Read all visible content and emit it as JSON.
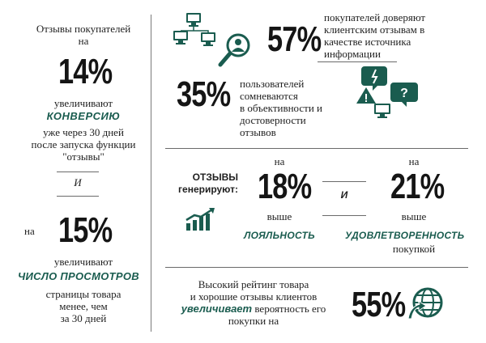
{
  "left": {
    "title_line1": "Отзывы покупателей",
    "title_line2": "на",
    "pct1": "14%",
    "increase1": "увеличивают",
    "conversion": "КОНВЕРСИЮ",
    "after1": "уже через 30 дней",
    "after2": "после запуска функции",
    "after3": "\"отзывы\"",
    "and": "И",
    "na": "на",
    "pct2": "15%",
    "increase2": "увеличивают",
    "views": "ЧИСЛО ПРОСМОТРОВ",
    "pages1": "страницы товара",
    "pages2": "менее, чем",
    "pages3": "за 30 дней"
  },
  "trust": {
    "pct": "57%",
    "line1": "покупателей доверяют",
    "line2": "клиентским отзывам в",
    "line3": "качестве источника",
    "line4": "информации"
  },
  "doubt": {
    "pct": "35%",
    "line1": "пользователей",
    "line2": "сомневаются",
    "line3": "в объективности и",
    "line4": "достоверности",
    "line5": "отзывов"
  },
  "generate": {
    "label1": "ОТЗЫВЫ",
    "label2": "генерируют:",
    "na1": "на",
    "pct1": "18%",
    "higher1": "выше",
    "loyalty": "ЛОЯЛЬНОСТЬ",
    "and": "И",
    "na2": "на",
    "pct2": "21%",
    "higher2": "выше",
    "satisfaction": "УДОВЛЕТВОРЕННОСТЬ",
    "purchase": "покупкой"
  },
  "rating": {
    "line1": "Высокий рейтинг товара",
    "line2": "и хорошие отзывы клиентов",
    "emph": "увеличивает",
    "line3_rest": "вероятность его",
    "line4": "покупки на",
    "pct": "55%"
  },
  "colors": {
    "accent": "#1a5c4f",
    "text": "#1f1f1f"
  },
  "icons": [
    "computers-network-icon",
    "magnifier-person-icon",
    "warning-question-bubbles-icon",
    "growth-chart-icon",
    "globe-arrow-icon"
  ]
}
